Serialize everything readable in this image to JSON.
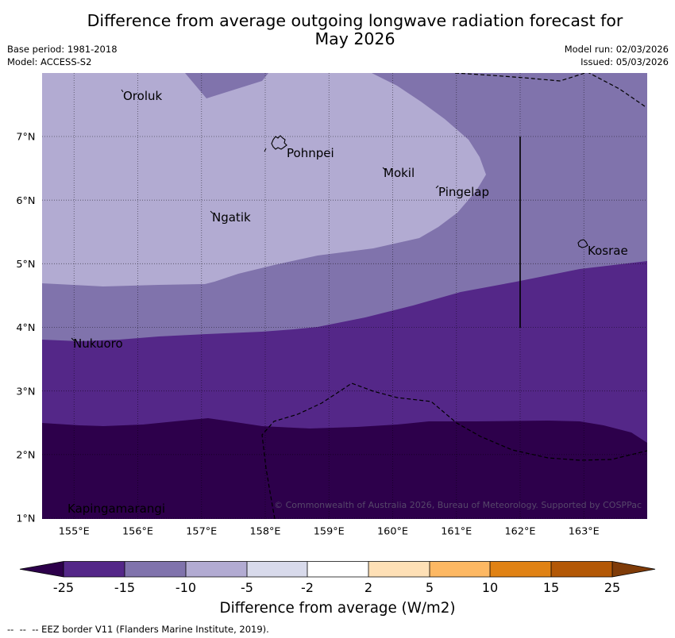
{
  "title": {
    "line1": "Difference from average outgoing longwave radiation forecast for",
    "line2": "May 2026"
  },
  "header_left": {
    "base_period": "Base period: 1981-2018",
    "model": "Model: ACCESS-S2"
  },
  "header_right": {
    "model_run": "Model run: 02/03/2026",
    "issued": "Issued: 05/03/2026"
  },
  "map": {
    "lat_labels": [
      "7°N",
      "6°N",
      "5°N",
      "4°N",
      "3°N",
      "2°N",
      "1°N"
    ],
    "lon_labels": [
      "155°E",
      "156°E",
      "157°E",
      "158°E",
      "159°E",
      "160°E",
      "161°E",
      "162°E",
      "163°E"
    ],
    "places": [
      "Oroluk",
      "Pohnpei",
      "Mokil",
      "Pingelap",
      "Ngatik",
      "Kosrae",
      "Nukuoro",
      "Kapingamarangi"
    ],
    "copyright": "© Commonwealth of Australia 2026, Bureau of Meteorology. Supported by COSPPac"
  },
  "colorbar": {
    "tick_labels": [
      "-25",
      "-15",
      "-10",
      "-5",
      "-2",
      "2",
      "5",
      "10",
      "15",
      "25"
    ],
    "colors": [
      "#2d004b",
      "#542788",
      "#8073ac",
      "#b2abd2",
      "#d8daeb",
      "#ffffff",
      "#fee0b6",
      "#fdb863",
      "#e08214",
      "#b35806",
      "#7f3b08"
    ],
    "title": "Difference from average (W/m2)"
  },
  "footer": {
    "eez_legend": "--  --  -- EEZ border V11 (Flanders Marine Institute, 2019)."
  }
}
